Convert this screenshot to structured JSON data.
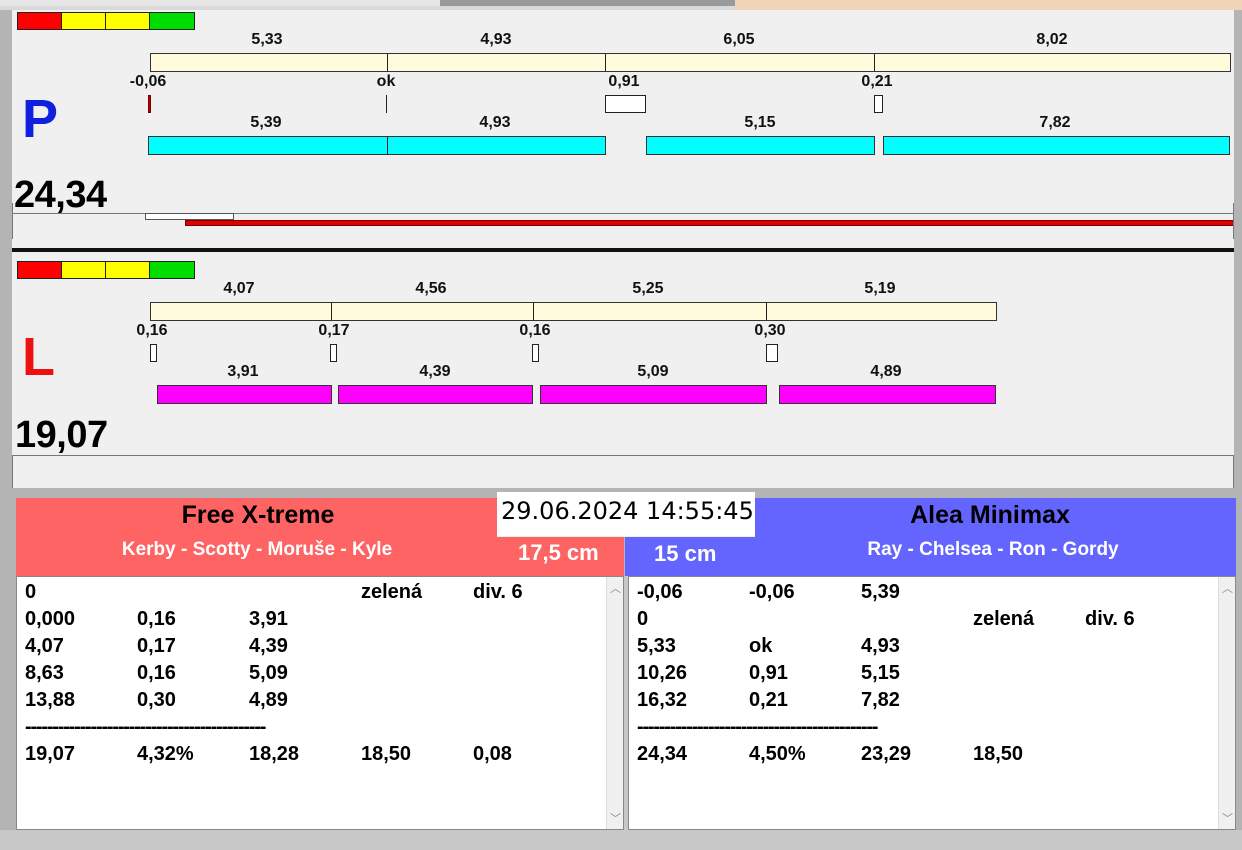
{
  "levels": [
    "#ff0000",
    "#ffff00",
    "#ffff00",
    "#00dd00"
  ],
  "colors": {
    "cream": "#fffbdc",
    "cyan": "#00ffff",
    "magenta": "#ff00ff",
    "red_bar": "#e00000",
    "left_header": "#ff6464",
    "right_header": "#6464ff"
  },
  "p": {
    "letter": "P",
    "total": "24,34",
    "top_values": [
      "5,33",
      "4,93",
      "6,05",
      "8,02"
    ],
    "mid_values": [
      "-0,06",
      "ok",
      "0,91",
      "0,21"
    ],
    "bottom_values": [
      "5,39",
      "4,93",
      "5,15",
      "7,82"
    ]
  },
  "l": {
    "letter": "L",
    "total": "19,07",
    "top_values": [
      "4,07",
      "4,56",
      "5,25",
      "5,19"
    ],
    "mid_values": [
      "0,16",
      "0,17",
      "0,16",
      "0,30"
    ],
    "bottom_values": [
      "3,91",
      "4,39",
      "5,09",
      "4,89"
    ]
  },
  "datetime": "29.06.2024 14:55:45",
  "left_team": {
    "name": "Free X-treme",
    "crew": "Kerby - Scotty - Moruše - Kyle",
    "distance": "17,5 cm",
    "rows": [
      [
        "0",
        "",
        "",
        "zelená",
        "div. 6"
      ],
      [
        "0,000",
        "0,16",
        "3,91",
        "",
        ""
      ],
      [
        "4,07",
        "0,17",
        "4,39",
        "",
        ""
      ],
      [
        "8,63",
        "0,16",
        "5,09",
        "",
        ""
      ],
      [
        "13,88",
        "0,30",
        "4,89",
        "",
        ""
      ]
    ],
    "separator": "--------------------------------------------",
    "summary": [
      "19,07",
      "4,32%",
      "18,28",
      "18,50",
      "0,08"
    ]
  },
  "right_team": {
    "name": "Alea Minimax",
    "crew": "Ray - Chelsea - Ron - Gordy",
    "distance": "15 cm",
    "rows": [
      [
        "-0,06",
        "-0,06",
        "5,39",
        "",
        ""
      ],
      [
        "0",
        "",
        "",
        "zelená",
        "div. 6"
      ],
      [
        "5,33",
        "ok",
        "4,93",
        "",
        ""
      ],
      [
        "10,26",
        "0,91",
        "5,15",
        "",
        ""
      ],
      [
        "16,32",
        "0,21",
        "7,82",
        "",
        ""
      ]
    ],
    "separator": "--------------------------------------------",
    "summary": [
      "24,34",
      "4,50%",
      "23,29",
      "18,50",
      ""
    ]
  },
  "icons": {
    "scroll_up": "chevron-up-icon",
    "scroll_down": "chevron-down-icon"
  }
}
